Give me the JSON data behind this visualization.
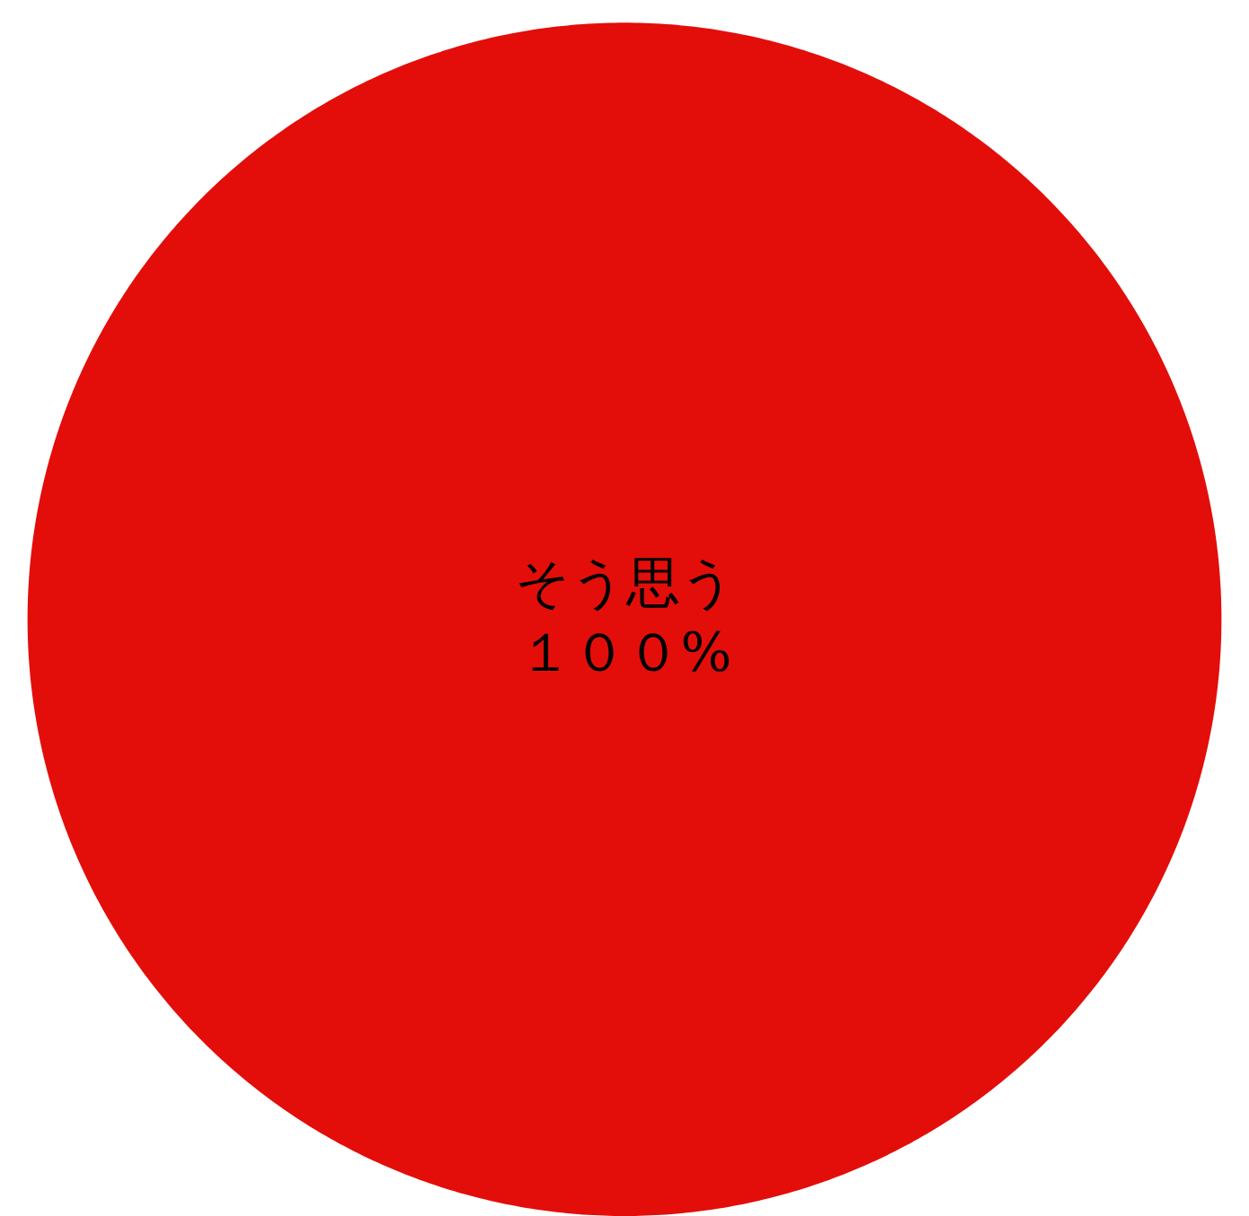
{
  "chart_data": {
    "type": "pie",
    "categories": [
      "そう思う"
    ],
    "values": [
      100
    ],
    "colors": [
      "#e30e0a"
    ],
    "value_labels": [
      "１００%"
    ]
  }
}
